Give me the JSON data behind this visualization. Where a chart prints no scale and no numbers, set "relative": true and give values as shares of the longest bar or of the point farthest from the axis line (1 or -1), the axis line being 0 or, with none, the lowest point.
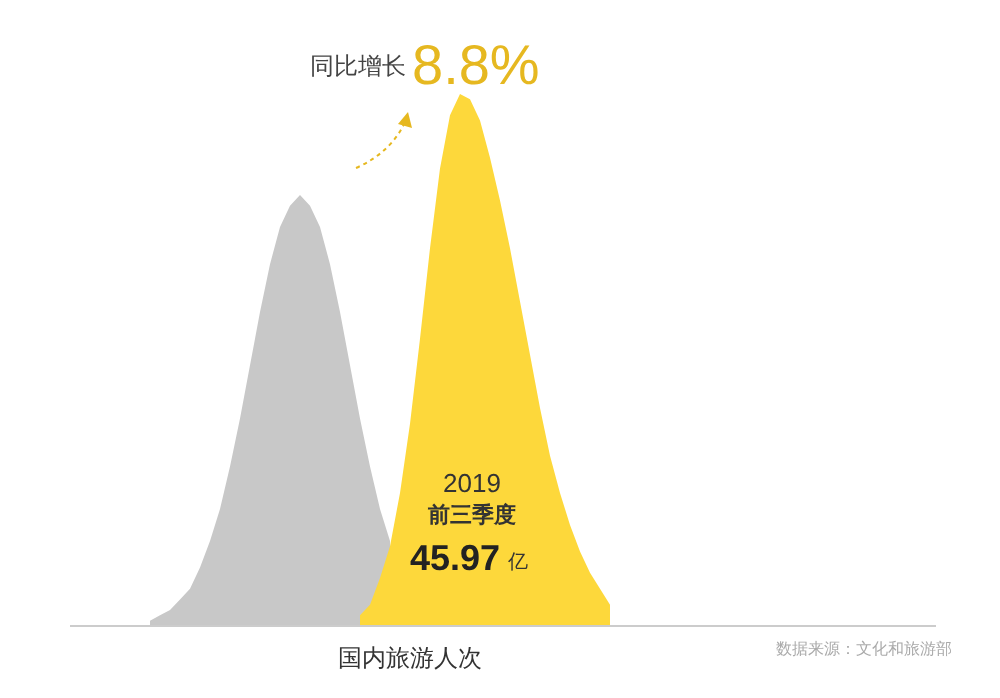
{
  "chart_data": {
    "type": "area",
    "relative": true,
    "xlabel": "国内旅游人次",
    "categories": [
      null,
      null,
      null,
      null,
      null,
      null,
      null,
      null,
      null,
      null,
      null,
      null,
      null,
      null,
      null,
      null,
      null,
      null,
      null,
      null,
      null,
      null,
      null,
      null,
      null,
      null,
      null,
      null,
      null,
      null,
      null,
      null,
      null,
      null,
      null,
      null,
      null,
      null,
      null,
      null,
      null,
      null,
      null,
      null,
      null,
      null,
      null
    ],
    "series": [
      {
        "color": "#c8c8c8",
        "values": [
          0.01,
          0.02,
          0.03,
          0.05,
          0.07,
          0.11,
          0.16,
          0.22,
          0.3,
          0.39,
          0.49,
          0.59,
          0.68,
          0.75,
          0.79,
          0.81,
          0.79,
          0.75,
          0.68,
          0.59,
          0.49,
          0.39,
          0.3,
          0.22,
          0.16,
          null,
          null,
          null,
          null,
          null,
          null,
          null,
          null,
          null,
          null,
          null,
          null,
          null,
          null,
          null,
          null,
          null,
          null,
          null,
          null,
          null,
          null
        ]
      },
      {
        "color": "#fdd83b",
        "values": [
          null,
          null,
          null,
          null,
          null,
          null,
          null,
          null,
          null,
          null,
          null,
          null,
          null,
          null,
          null,
          null,
          null,
          null,
          null,
          null,
          null,
          0.02,
          0.04,
          0.09,
          0.15,
          0.25,
          0.38,
          0.54,
          0.71,
          0.86,
          0.96,
          1,
          0.99,
          0.95,
          0.88,
          0.8,
          0.71,
          0.61,
          0.51,
          0.41,
          0.32,
          0.25,
          0.19,
          0.14,
          0.1,
          0.07,
          0.04
        ]
      }
    ],
    "annotations": [
      "同比增长",
      "8.8%",
      "2019",
      "前三季度",
      "45.97",
      "亿",
      "数据来源：文化和旅游部"
    ]
  }
}
